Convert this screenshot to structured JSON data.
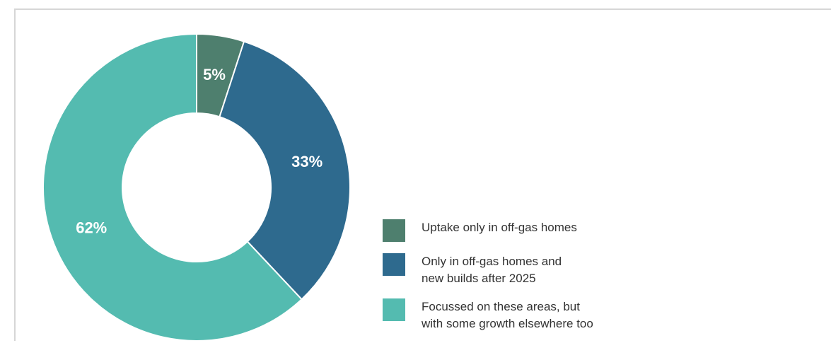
{
  "chart_data": {
    "type": "donut",
    "series": [
      {
        "name": "Uptake only in off-gas homes",
        "color": "#4e7f6e",
        "values": [
          5
        ],
        "value_labels": [
          "5%"
        ]
      },
      {
        "name": "Only in off-gas homes and\nnew builds after 2025",
        "color": "#2e6a8e",
        "values": [
          33
        ],
        "value_labels": [
          "33%"
        ]
      },
      {
        "name": "Focussed on these areas, but\nwith some growth elsewhere too",
        "color": "#54bbb0",
        "values": [
          62
        ],
        "value_labels": [
          "62%"
        ]
      }
    ],
    "legend": "right-bottom"
  }
}
